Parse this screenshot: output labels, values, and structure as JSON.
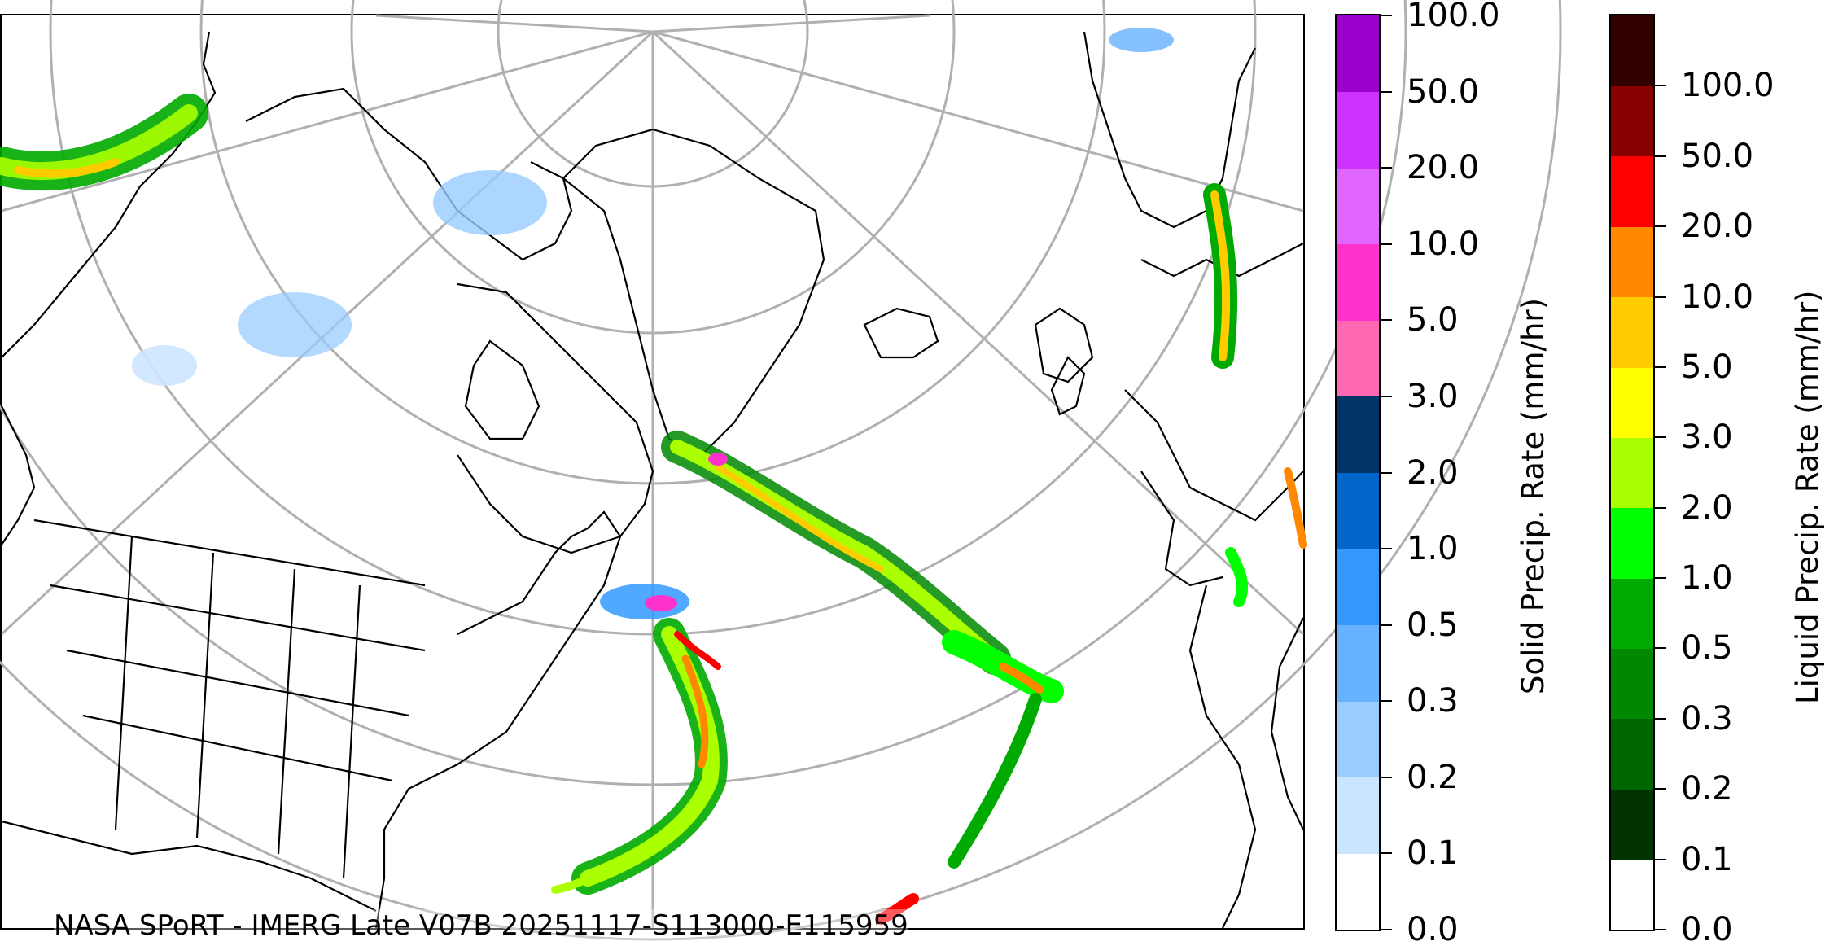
{
  "credit": "NASA SPoRT - IMERG Late V07B 20251117-S113000-E115959",
  "colorbars": {
    "solid": {
      "label": "Solid Precip. Rate (mm/hr)",
      "ticks": [
        "0.0",
        "0.1",
        "0.2",
        "0.3",
        "0.5",
        "1.0",
        "2.0",
        "3.0",
        "5.0",
        "10.0",
        "20.0",
        "50.0",
        "100.0"
      ],
      "colors": [
        "#ffffff",
        "#cce5ff",
        "#99ccff",
        "#66b2ff",
        "#3399ff",
        "#0066cc",
        "#003366",
        "#ff69b4",
        "#ff33cc",
        "#e066ff",
        "#cc33ff",
        "#9900cc"
      ]
    },
    "liquid": {
      "label": "Liquid Precip. Rate (mm/hr)",
      "ticks": [
        "0.0",
        "0.1",
        "0.2",
        "0.3",
        "0.5",
        "1.0",
        "2.0",
        "3.0",
        "5.0",
        "10.0",
        "20.0",
        "50.0",
        "100.0"
      ],
      "colors": [
        "#ffffff",
        "#003300",
        "#006600",
        "#008800",
        "#00aa00",
        "#00ff00",
        "#aaff00",
        "#ffff00",
        "#ffcc00",
        "#ff8800",
        "#ff0000",
        "#880000",
        "#330000"
      ]
    }
  },
  "map": {
    "graticule_color": "#b0b0b0",
    "coastline_color": "#000000",
    "projection": "polar stereographic",
    "region": "North America, North Atlantic, Greenland, Europe, West Africa"
  }
}
